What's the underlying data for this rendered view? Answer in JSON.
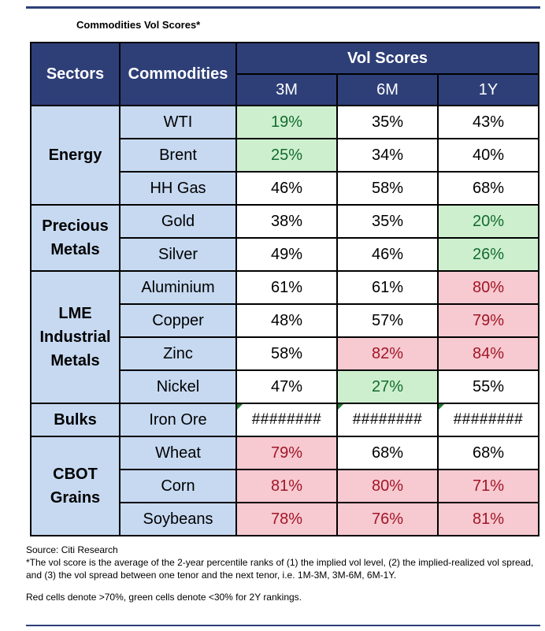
{
  "title": "Commodities Vol Scores*",
  "header": {
    "sectors": "Sectors",
    "commodities": "Commodities",
    "vol_scores": "Vol Scores",
    "tenors": [
      "3M",
      "6M",
      "1Y"
    ]
  },
  "colors": {
    "header_bg": "#2e3f78",
    "label_bg": "#c6d9f1",
    "red": "#f7c9d0",
    "green": "#cdefce"
  },
  "rows": [
    {
      "sector": "Energy",
      "commodity": "WTI",
      "v3m": "19%",
      "v6m": "35%",
      "v1y": "43%"
    },
    {
      "commodity": "Brent",
      "v3m": "25%",
      "v6m": "34%",
      "v1y": "40%"
    },
    {
      "commodity": "HH Gas",
      "v3m": "46%",
      "v6m": "58%",
      "v1y": "68%"
    },
    {
      "sector_lines": [
        "Precious",
        "Metals"
      ],
      "commodity": "Gold",
      "v3m": "38%",
      "v6m": "35%",
      "v1y": "20%"
    },
    {
      "commodity": "Silver",
      "v3m": "49%",
      "v6m": "46%",
      "v1y": "26%"
    },
    {
      "sector_lines": [
        "LME",
        "Industrial",
        "Metals"
      ],
      "commodity": "Aluminium",
      "v3m": "61%",
      "v6m": "61%",
      "v1y": "80%"
    },
    {
      "commodity": "Copper",
      "v3m": "48%",
      "v6m": "57%",
      "v1y": "79%"
    },
    {
      "commodity": "Zinc",
      "v3m": "58%",
      "v6m": "82%",
      "v1y": "84%"
    },
    {
      "commodity": "Nickel",
      "v3m": "47%",
      "v6m": "27%",
      "v1y": "55%"
    },
    {
      "sector": "Bulks",
      "commodity": "Iron Ore",
      "v3m": "########",
      "v6m": "########",
      "v1y": "########"
    },
    {
      "sector_lines": [
        "CBOT",
        "Grains"
      ],
      "commodity": "Wheat",
      "v3m": "79%",
      "v6m": "68%",
      "v1y": "68%"
    },
    {
      "commodity": "Corn",
      "v3m": "81%",
      "v6m": "80%",
      "v1y": "71%"
    },
    {
      "commodity": "Soybeans",
      "v3m": "78%",
      "v6m": "76%",
      "v1y": "81%"
    }
  ],
  "notes": {
    "source": "Source: Citi Research",
    "footnote": "*The vol score is the average of  the 2-year percentile ranks of (1) the implied vol level, (2) the implied-realized vol spread, and (3) the vol spread between one tenor and the next tenor, i.e. 1M-3M, 3M-6M, 6M-1Y.",
    "legend": "Red cells denote >70%, green cells denote <30% for 2Y rankings."
  }
}
